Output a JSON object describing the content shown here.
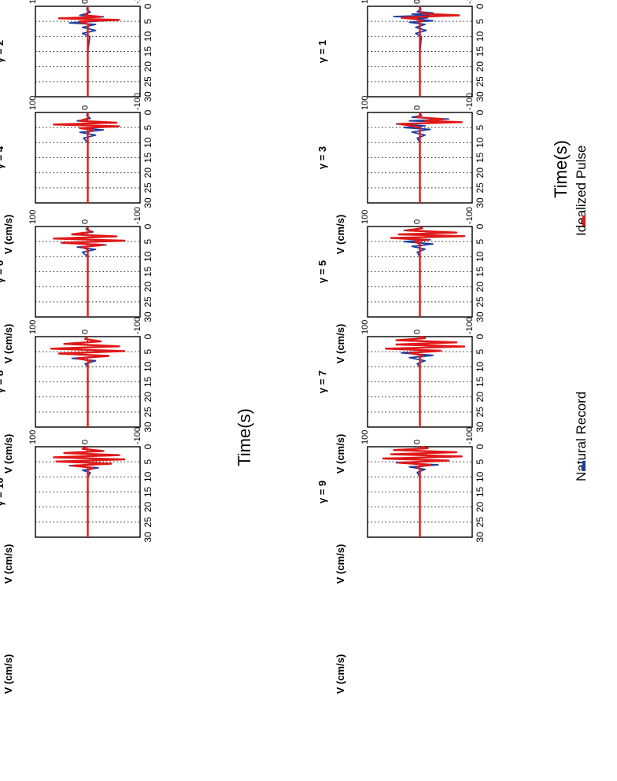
{
  "figure": {
    "x_title": "Time(s)",
    "y_label": "V (cm/s)",
    "legend": [
      {
        "label": "Natural Record",
        "color": "#1f3fa0"
      },
      {
        "label": "Idealized Pulse",
        "color": "#e01818"
      }
    ]
  },
  "chart_data": {
    "type": "line",
    "orientation": "rotated 90° (time axis runs top to bottom)",
    "xlim": [
      0,
      30
    ],
    "ylim": [
      -100,
      100
    ],
    "xticks": [
      0,
      5,
      10,
      15,
      20,
      25,
      30
    ],
    "yticks": [
      100,
      0,
      -100
    ],
    "grid": true,
    "legend_position": "bottom",
    "panels": [
      {
        "title": "γ = 1",
        "x": [
          0,
          1,
          1.8,
          2.2,
          2.6,
          3.0,
          3.4,
          3.8,
          4.2,
          4.8,
          5.3,
          6.0,
          7,
          8,
          9,
          10,
          15,
          30
        ],
        "series": [
          {
            "name": "Natural Record",
            "values": [
              0,
              -2,
              5,
              -25,
              15,
              -20,
              50,
              -15,
              10,
              -25,
              20,
              -10,
              8,
              -12,
              8,
              -3,
              0,
              0
            ]
          },
          {
            "name": "Idealized Pulse",
            "values": [
              0,
              0,
              0,
              -3,
              -20,
              -75,
              -10,
              35,
              10,
              -5,
              2,
              0,
              0,
              0,
              0,
              0,
              0,
              0
            ]
          }
        ]
      },
      {
        "title": "γ = 2",
        "x": [
          0,
          1,
          2,
          3,
          3.5,
          4,
          4.5,
          5,
          5.5,
          6,
          7,
          8,
          9,
          10,
          15,
          30
        ],
        "series": [
          {
            "name": "Natural Record",
            "values": [
              0,
              2,
              -5,
              15,
              -30,
              45,
              -55,
              -10,
              35,
              -15,
              10,
              -15,
              10,
              -4,
              0,
              0
            ]
          },
          {
            "name": "Idealized Pulse",
            "values": [
              0,
              0,
              0,
              5,
              -25,
              55,
              -60,
              15,
              10,
              -3,
              0,
              0,
              0,
              0,
              0,
              0
            ]
          }
        ]
      },
      {
        "title": "γ = 3",
        "x": [
          0,
          1,
          1.6,
          2.2,
          2.8,
          3.2,
          3.8,
          4.4,
          5.0,
          5.6,
          6.5,
          7.5,
          8.5,
          10,
          15,
          30
        ],
        "series": [
          {
            "name": "Natural Record",
            "values": [
              0,
              -3,
              15,
              -55,
              20,
              -70,
              45,
              -10,
              30,
              -20,
              15,
              -10,
              5,
              0,
              0,
              0
            ]
          },
          {
            "name": "Idealized Pulse",
            "values": [
              0,
              0,
              5,
              -45,
              -10,
              -80,
              40,
              15,
              0,
              0,
              0,
              0,
              0,
              0,
              0,
              0
            ]
          }
        ]
      },
      {
        "title": "γ = 4",
        "x": [
          0,
          1,
          2,
          2.8,
          3.4,
          4,
          4.6,
          5.2,
          5.8,
          6.6,
          7.5,
          8.5,
          10,
          15,
          30
        ],
        "series": [
          {
            "name": "Natural Record",
            "values": [
              0,
              2,
              -5,
              20,
              -40,
              55,
              -50,
              10,
              -30,
              15,
              -15,
              8,
              0,
              0,
              0
            ]
          },
          {
            "name": "Idealized Pulse",
            "values": [
              0,
              0,
              0,
              15,
              -55,
              65,
              -60,
              15,
              -10,
              0,
              0,
              0,
              0,
              0,
              0
            ]
          }
        ]
      },
      {
        "title": "γ = 5",
        "x": [
          0,
          0.6,
          1.3,
          2.0,
          2.6,
          3.2,
          3.8,
          4.4,
          5.0,
          5.8,
          6.6,
          7.5,
          8.5,
          10,
          15,
          30
        ],
        "series": [
          {
            "name": "Natural Record",
            "values": [
              0,
              -5,
              30,
              -60,
              35,
              -75,
              50,
              -20,
              30,
              -25,
              15,
              -10,
              5,
              0,
              0,
              0
            ]
          },
          {
            "name": "Idealized Pulse",
            "values": [
              0,
              -3,
              25,
              -70,
              40,
              -85,
              55,
              -15,
              10,
              0,
              0,
              0,
              0,
              0,
              0,
              0
            ]
          }
        ]
      },
      {
        "title": "γ = 6",
        "x": [
          0,
          1,
          1.8,
          2.6,
          3.3,
          4,
          4.7,
          5.4,
          6.1,
          6.8,
          7.6,
          8.5,
          10,
          15,
          30
        ],
        "series": [
          {
            "name": "Natural Record",
            "values": [
              0,
              3,
              -10,
              25,
              -45,
              50,
              -55,
              45,
              -35,
              20,
              -15,
              10,
              0,
              0,
              0
            ]
          },
          {
            "name": "Idealized Pulse",
            "values": [
              0,
              0,
              -5,
              30,
              -55,
              65,
              -70,
              50,
              -30,
              10,
              0,
              0,
              0,
              0,
              0
            ]
          }
        ]
      },
      {
        "title": "γ = 7",
        "x": [
          0,
          0.5,
          1.2,
          1.9,
          2.6,
          3.3,
          4.0,
          4.7,
          5.4,
          6.2,
          7.0,
          8.0,
          9,
          10,
          15,
          30
        ],
        "series": [
          {
            "name": "Natural Record",
            "values": [
              0,
              -10,
              35,
              -60,
              40,
              -75,
              60,
              -35,
              35,
              -25,
              20,
              -10,
              5,
              0,
              0,
              0
            ]
          },
          {
            "name": "Idealized Pulse",
            "values": [
              0,
              -10,
              45,
              -70,
              45,
              -85,
              65,
              -40,
              20,
              -5,
              0,
              0,
              0,
              0,
              0,
              0
            ]
          }
        ]
      },
      {
        "title": "γ = 8",
        "x": [
          0,
          0.8,
          1.6,
          2.4,
          3.2,
          4.0,
          4.8,
          5.6,
          6.4,
          7.2,
          8.0,
          9.0,
          10,
          15,
          30
        ],
        "series": [
          {
            "name": "Natural Record",
            "values": [
              0,
              5,
              -20,
              35,
              -50,
              55,
              -55,
              50,
              -40,
              30,
              -15,
              5,
              0,
              0,
              0
            ]
          },
          {
            "name": "Idealized Pulse",
            "values": [
              0,
              5,
              -25,
              45,
              -60,
              70,
              -70,
              55,
              -40,
              20,
              -5,
              0,
              0,
              0,
              0
            ]
          }
        ]
      },
      {
        "title": "γ = 9",
        "x": [
          0,
          0.5,
          1.1,
          1.8,
          2.5,
          3.2,
          3.9,
          4.6,
          5.3,
          6.0,
          6.7,
          7.5,
          8.5,
          10,
          15,
          30
        ],
        "series": [
          {
            "name": "Natural Record",
            "values": [
              0,
              -15,
              45,
              -60,
              45,
              -75,
              60,
              -45,
              45,
              -35,
              20,
              -10,
              5,
              0,
              0,
              0
            ]
          },
          {
            "name": "Idealized Pulse",
            "values": [
              0,
              -15,
              50,
              -70,
              55,
              -80,
              70,
              -55,
              40,
              -20,
              5,
              0,
              0,
              0,
              0,
              0
            ]
          }
        ]
      },
      {
        "title": "γ = 10",
        "x": [
          0,
          0.7,
          1.4,
          2.1,
          2.8,
          3.5,
          4.2,
          4.9,
          5.6,
          6.3,
          7.0,
          7.8,
          8.6,
          10,
          15,
          30
        ],
        "series": [
          {
            "name": "Natural Record",
            "values": [
              0,
              10,
              -25,
              40,
              -50,
              55,
              -60,
              55,
              -45,
              35,
              -20,
              10,
              -5,
              0,
              0,
              0
            ]
          },
          {
            "name": "Idealized Pulse",
            "values": [
              0,
              10,
              -30,
              45,
              -60,
              65,
              -70,
              60,
              -45,
              30,
              -10,
              0,
              0,
              0,
              0,
              0
            ]
          }
        ]
      }
    ]
  }
}
